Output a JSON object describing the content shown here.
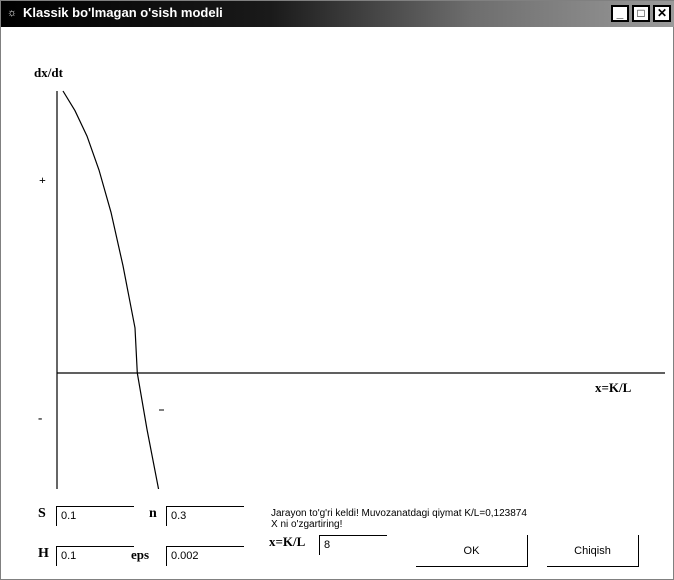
{
  "window": {
    "title": "Klassik bo'lmagan o'sish modeli",
    "controls": [
      "minimize-icon",
      "maximize-icon",
      "close-icon"
    ]
  },
  "plot": {
    "y_axis_label": "dx/dt",
    "x_axis_label": "x=K/L",
    "plus_marker": "+",
    "minus_marker": "-"
  },
  "params": {
    "s_label": "S",
    "s_value": "0.1",
    "n_label": "n",
    "n_value": "0.3",
    "h_label": "H",
    "h_value": "0.1",
    "eps_label": "eps",
    "eps_value": "0.002"
  },
  "status": {
    "line1": "Jarayon to'g'ri keldi! Muvozanatdagi qiymat K/L=0,123874",
    "line2": "X ni o'zgartiring!",
    "x_label": "x=K/L",
    "x_value": "8"
  },
  "buttons": {
    "ok": "OK",
    "exit": "Chiqish"
  },
  "chart_data": {
    "type": "line",
    "xlabel": "x=K/L",
    "ylabel": "dx/dt",
    "series": [
      {
        "x": [
          0.0,
          0.02,
          0.04,
          0.06,
          0.08,
          0.1,
          0.12,
          0.1239,
          0.14,
          0.16,
          0.18
        ],
        "y": [
          1.0,
          0.93,
          0.84,
          0.72,
          0.57,
          0.38,
          0.16,
          0.0,
          -0.2,
          -0.42,
          -0.66
        ]
      }
    ]
  }
}
